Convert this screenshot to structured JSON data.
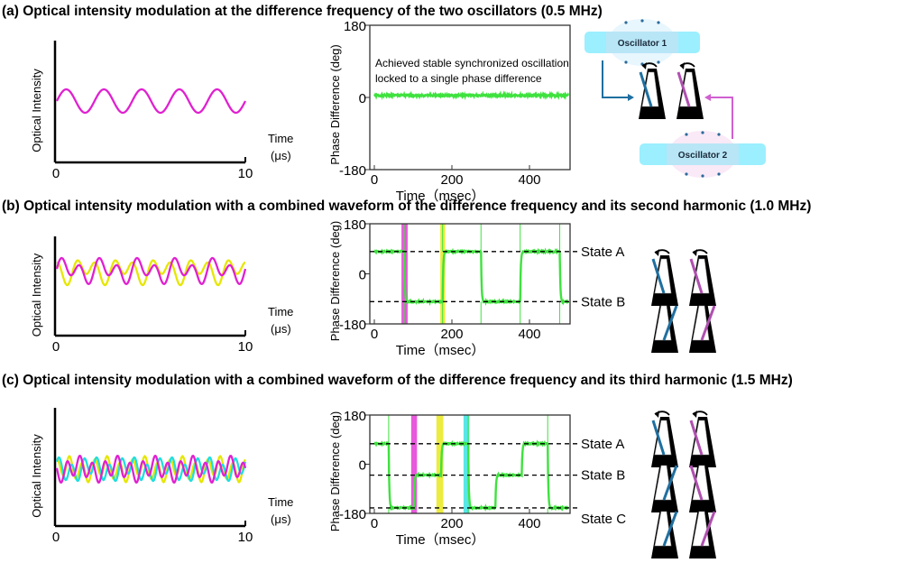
{
  "titles": {
    "a": "(a) Optical intensity modulation at the difference frequency of the two oscillators (0.5 MHz)",
    "b": "(b) Optical intensity modulation with a combined waveform of the difference frequency and its second harmonic (1.0 MHz)",
    "c": "(c) Optical intensity modulation with a combined waveform of the difference frequency and its third harmonic (1.5 MHz)"
  },
  "diagram": {
    "oscillator1": "Oscillator 1",
    "oscillator2": "Oscillator 2"
  },
  "colors": {
    "magenta": "#e020d0",
    "yellow": "#e6e600",
    "cyan": "#20dede",
    "green": "#3ee23e",
    "pendulum_blue": "#1f6fa0",
    "pendulum_pink": "#b050b0"
  },
  "chart_data": [
    {
      "panel": "a",
      "type": "line",
      "ylabel": "Optical Intensity",
      "xlabel": "Time",
      "xunit": "(μs)",
      "xticks": [
        "0",
        "10"
      ],
      "xlim": [
        0,
        10
      ],
      "series": [
        {
          "color": "magenta",
          "components": [
            {
              "freq_mhz": 0.5,
              "amp": 1,
              "phase": 0
            }
          ]
        }
      ]
    },
    {
      "panel": "a",
      "type": "line",
      "ylabel": "Phase Difference (deg)",
      "xlabel": "Time（msec）",
      "xlim": [
        0,
        500
      ],
      "ylim": [
        -180,
        180
      ],
      "xticks": [
        "0",
        "200",
        "400"
      ],
      "yticks": [
        "180",
        "0",
        "-180"
      ],
      "annotation": [
        "Achieved stable synchronized oscillation",
        "locked to a single phase difference"
      ],
      "segments": [
        {
          "start": 0,
          "end": 500,
          "value": 5
        }
      ],
      "states": [],
      "highlights": []
    },
    {
      "panel": "b",
      "type": "line",
      "ylabel": "Optical Intensity",
      "xlabel": "Time",
      "xunit": "(μs)",
      "xticks": [
        "0",
        "10"
      ],
      "xlim": [
        0,
        10
      ],
      "series": [
        {
          "color": "yellow",
          "components": [
            {
              "freq_mhz": 0.5,
              "amp": 0.45,
              "phase": 3.14
            },
            {
              "freq_mhz": 1.0,
              "amp": 0.7,
              "phase": 1.2
            }
          ]
        },
        {
          "color": "magenta",
          "components": [
            {
              "freq_mhz": 0.5,
              "amp": 0.45,
              "phase": 0
            },
            {
              "freq_mhz": 1.0,
              "amp": 0.7,
              "phase": 0.2
            }
          ]
        }
      ]
    },
    {
      "panel": "b",
      "type": "line",
      "ylabel": "Phase Difference (deg)",
      "xlabel": "Time（msec）",
      "xlim": [
        0,
        500
      ],
      "ylim": [
        -180,
        180
      ],
      "xticks": [
        "0",
        "200",
        "400"
      ],
      "yticks": [
        "180",
        "0",
        "-180"
      ],
      "states": [
        {
          "label": "State A",
          "value": 80
        },
        {
          "label": "State B",
          "value": -100
        }
      ],
      "segments": [
        {
          "start": 0,
          "end": 77,
          "value": 80
        },
        {
          "start": 77,
          "end": 176,
          "value": -100
        },
        {
          "start": 176,
          "end": 275,
          "value": 80
        },
        {
          "start": 275,
          "end": 376,
          "value": -100
        },
        {
          "start": 376,
          "end": 478,
          "value": 80
        },
        {
          "start": 478,
          "end": 500,
          "value": -100
        }
      ],
      "highlights": [
        {
          "start": 70,
          "end": 86,
          "color": "magenta"
        },
        {
          "start": 170,
          "end": 183,
          "color": "yellow"
        }
      ]
    },
    {
      "panel": "c",
      "type": "line",
      "ylabel": "Optical Intensity",
      "xlabel": "Time",
      "xunit": "(μs)",
      "xticks": [
        "0",
        "10"
      ],
      "xlim": [
        0,
        10
      ],
      "series": [
        {
          "color": "yellow",
          "components": [
            {
              "freq_mhz": 0.5,
              "amp": 0.3,
              "phase": 0
            },
            {
              "freq_mhz": 1.5,
              "amp": 0.75,
              "phase": 1.5
            }
          ]
        },
        {
          "color": "cyan",
          "components": [
            {
              "freq_mhz": 0.5,
              "amp": 0.3,
              "phase": 2.1
            },
            {
              "freq_mhz": 1.5,
              "amp": 0.6,
              "phase": 0.4
            }
          ]
        },
        {
          "color": "magenta",
          "components": [
            {
              "freq_mhz": 0.5,
              "amp": 0.3,
              "phase": 4.2
            },
            {
              "freq_mhz": 1.5,
              "amp": 0.65,
              "phase": 2.6
            }
          ]
        }
      ]
    },
    {
      "panel": "c",
      "type": "line",
      "ylabel": "Phase Difference (deg)",
      "xlabel": "Time（msec）",
      "xlim": [
        0,
        500
      ],
      "ylim": [
        -180,
        180
      ],
      "xticks": [
        "0",
        "200",
        "400"
      ],
      "yticks": [
        "180",
        "0",
        "-180"
      ],
      "states": [
        {
          "label": "State A",
          "value": 75
        },
        {
          "label": "State B",
          "value": -40
        },
        {
          "label": "State C",
          "value": -160
        }
      ],
      "segments": [
        {
          "start": 0,
          "end": 37,
          "value": 75
        },
        {
          "start": 37,
          "end": 102,
          "value": -160
        },
        {
          "start": 102,
          "end": 172,
          "value": -40
        },
        {
          "start": 172,
          "end": 242,
          "value": 75
        },
        {
          "start": 242,
          "end": 312,
          "value": -160
        },
        {
          "start": 312,
          "end": 380,
          "value": -40
        },
        {
          "start": 380,
          "end": 447,
          "value": 75
        },
        {
          "start": 447,
          "end": 500,
          "value": -160
        }
      ],
      "highlights": [
        {
          "start": 95,
          "end": 110,
          "color": "magenta"
        },
        {
          "start": 160,
          "end": 178,
          "color": "yellow"
        },
        {
          "start": 230,
          "end": 245,
          "color": "cyan"
        }
      ]
    }
  ]
}
